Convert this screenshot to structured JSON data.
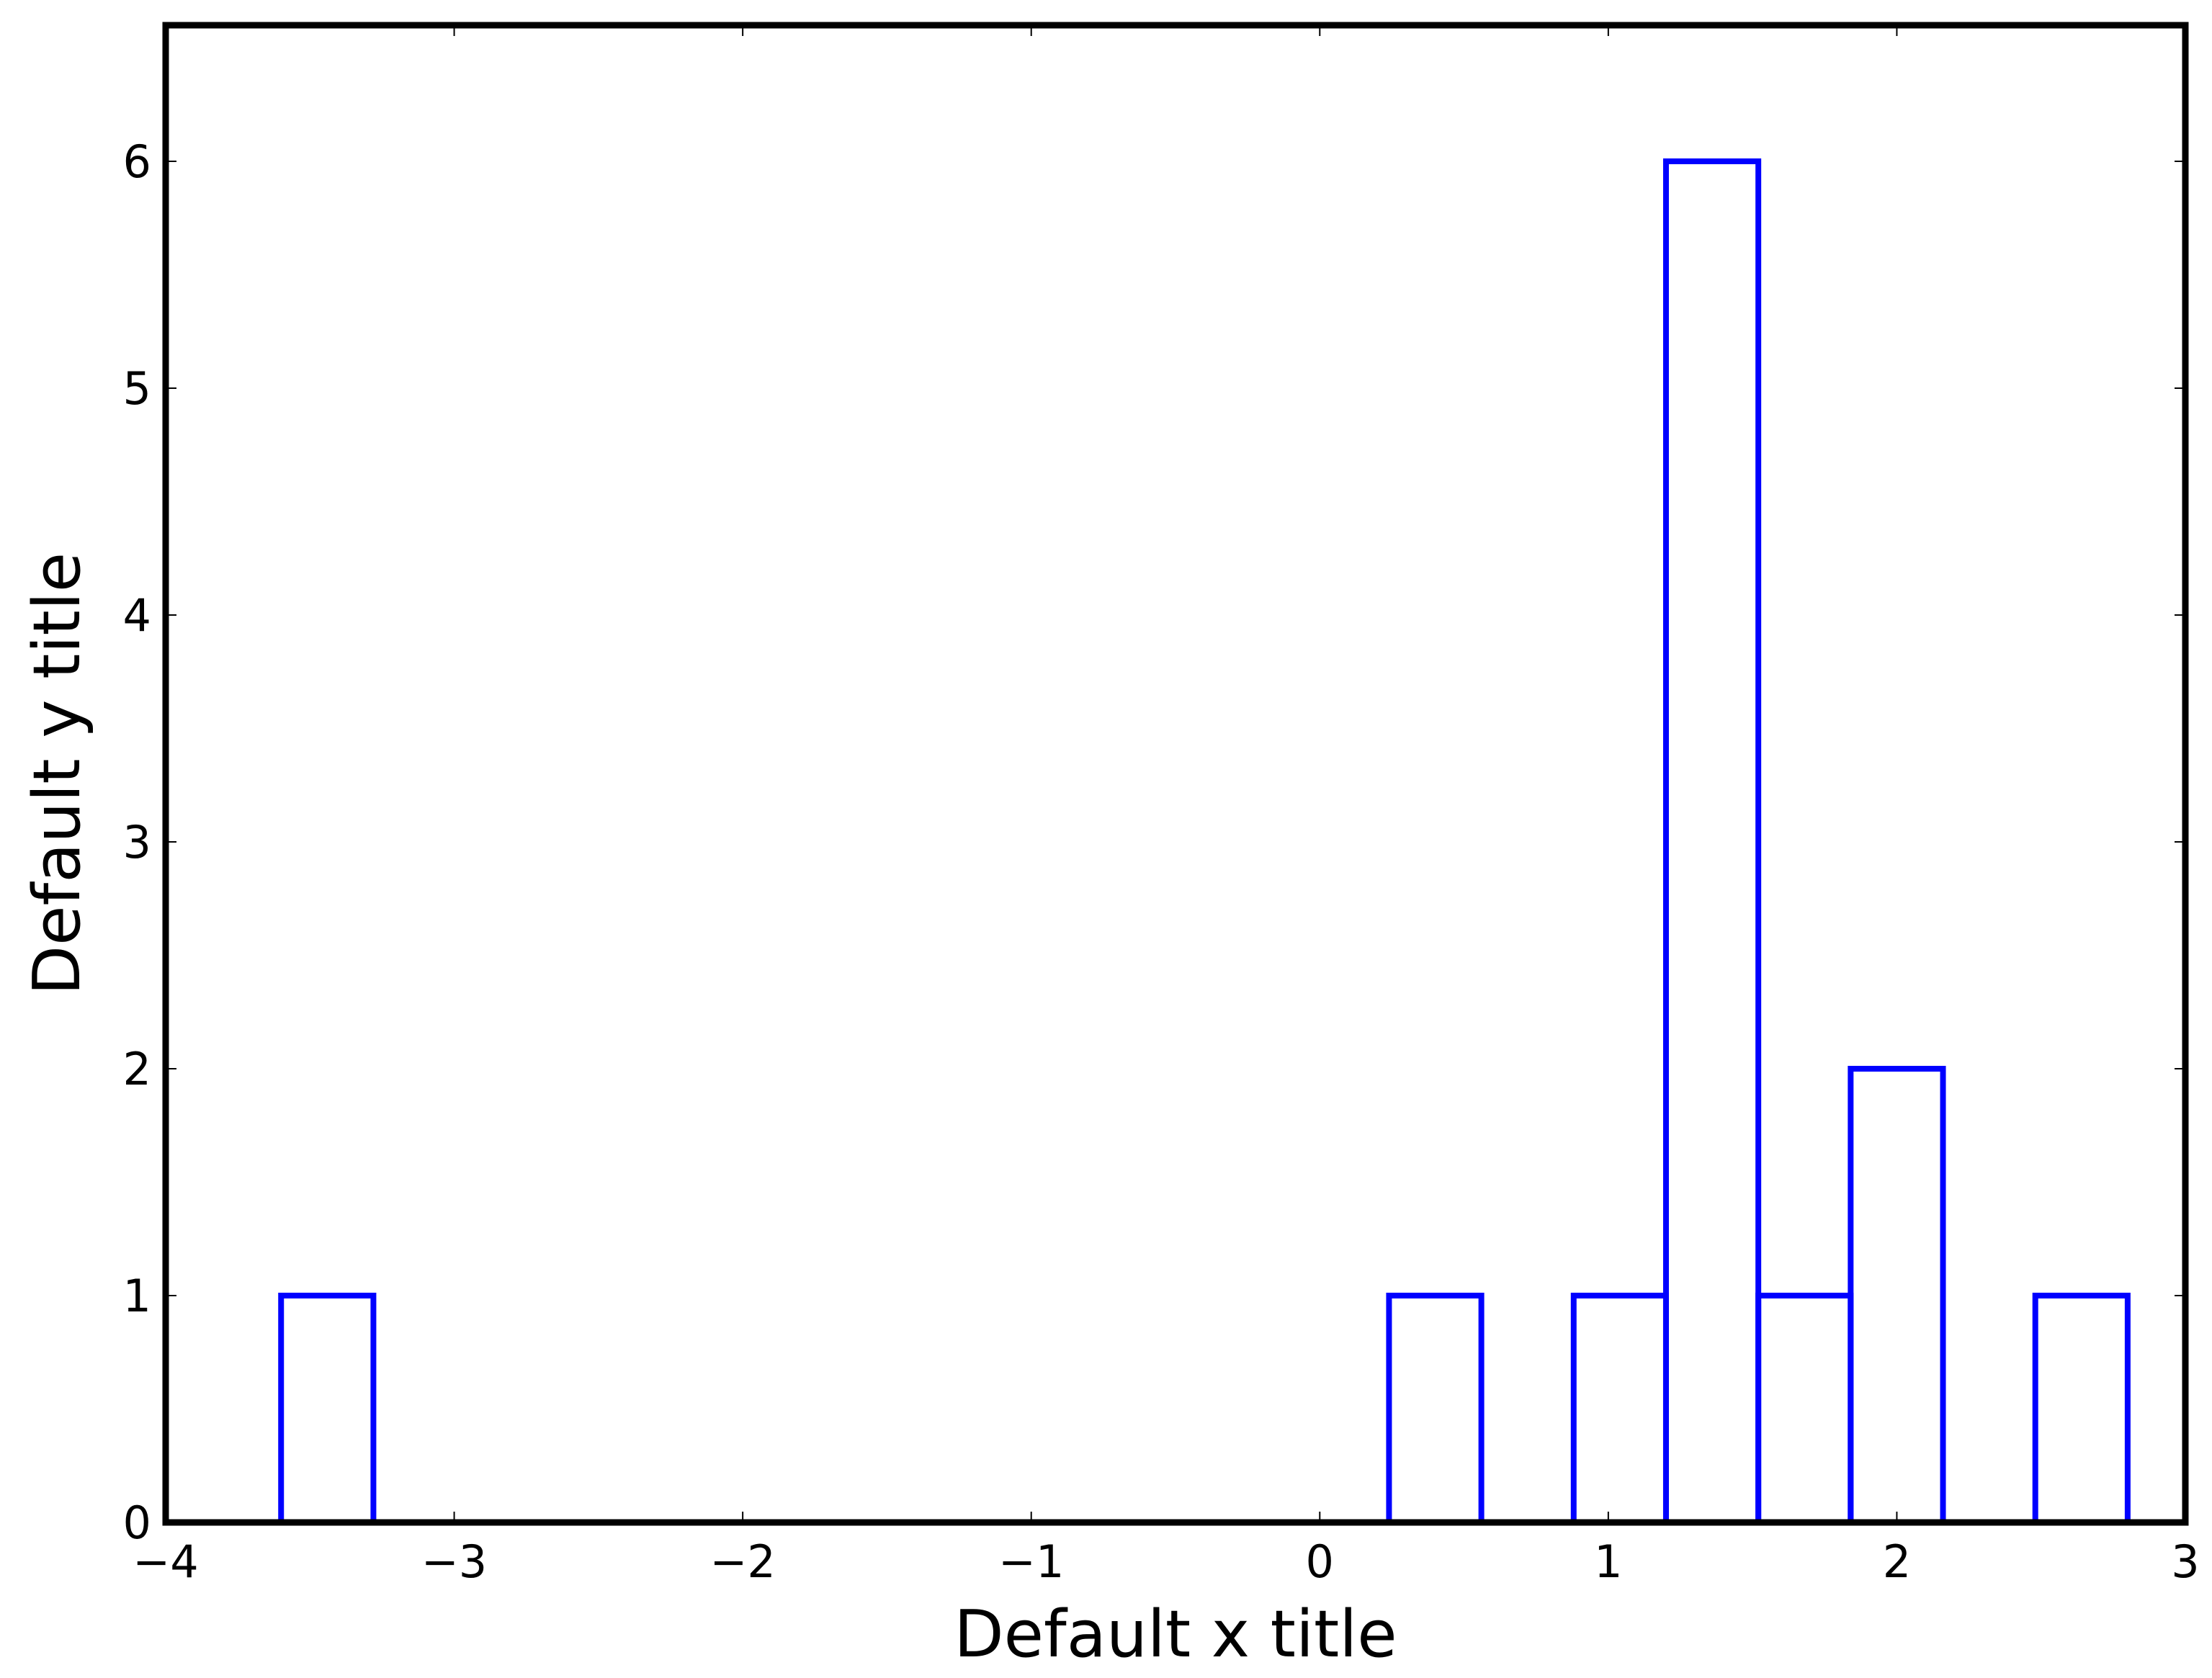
{
  "chart_data": {
    "type": "histogram",
    "histtype": "step",
    "title": "",
    "xlabel": "Default x title",
    "ylabel": "Default y title",
    "xlim": [
      -4,
      3
    ],
    "ylim": [
      0,
      6.6
    ],
    "grid": false,
    "legend": "none",
    "line_color": "#0000ff",
    "frame_color": "#000000",
    "x_ticks": [
      {
        "value": -4,
        "label": "−4"
      },
      {
        "value": -3,
        "label": "−3"
      },
      {
        "value": -2,
        "label": "−2"
      },
      {
        "value": -1,
        "label": "−1"
      },
      {
        "value": 0,
        "label": "0"
      },
      {
        "value": 1,
        "label": "1"
      },
      {
        "value": 2,
        "label": "2"
      },
      {
        "value": 3,
        "label": "3"
      }
    ],
    "y_ticks": [
      {
        "value": 0,
        "label": "0"
      },
      {
        "value": 1,
        "label": "1"
      },
      {
        "value": 2,
        "label": "2"
      },
      {
        "value": 3,
        "label": "3"
      },
      {
        "value": 4,
        "label": "4"
      },
      {
        "value": 5,
        "label": "5"
      },
      {
        "value": 6,
        "label": "6"
      }
    ],
    "bins": [
      {
        "x0": -3.6,
        "x1": -3.28,
        "count": 1
      },
      {
        "x0": 0.24,
        "x1": 0.56,
        "count": 1
      },
      {
        "x0": 0.88,
        "x1": 1.2,
        "count": 1
      },
      {
        "x0": 1.2,
        "x1": 1.52,
        "count": 6
      },
      {
        "x0": 1.52,
        "x1": 1.84,
        "count": 1
      },
      {
        "x0": 1.84,
        "x1": 2.16,
        "count": 2
      },
      {
        "x0": 2.48,
        "x1": 2.8,
        "count": 1
      }
    ]
  }
}
